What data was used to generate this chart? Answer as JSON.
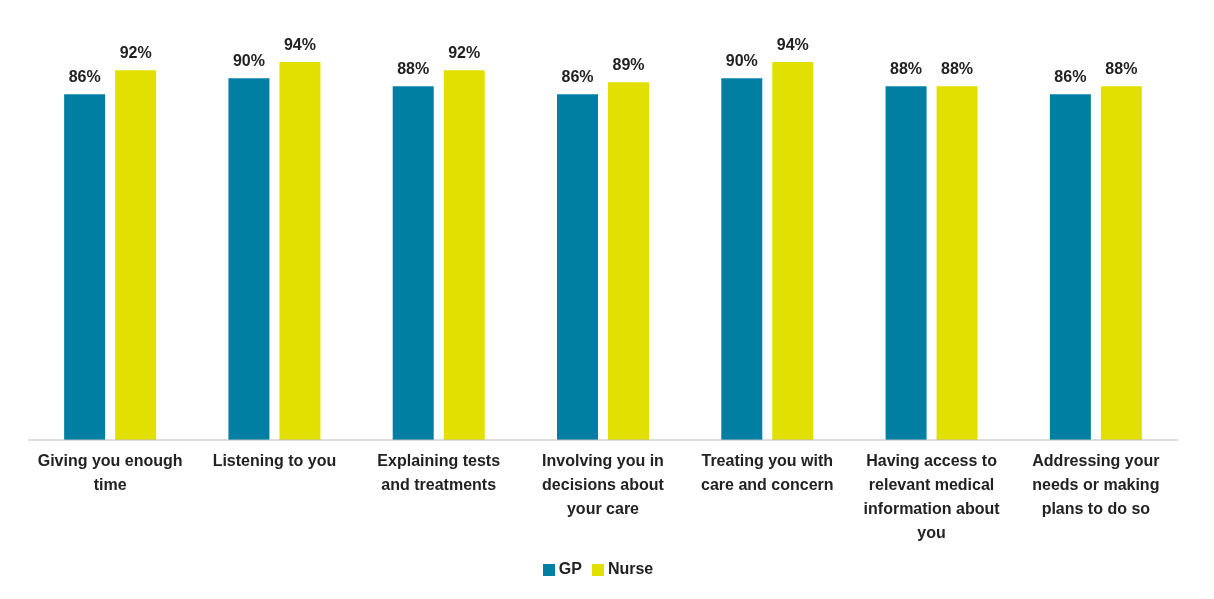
{
  "chart_data": {
    "type": "bar",
    "categories": [
      "Giving you enough time",
      "Listening to you",
      "Explaining tests and treatments",
      "Involving you in decisions about your care",
      "Treating you with care and concern",
      "Having access to relevant medical information about you",
      "Addressing your needs or making plans to do so"
    ],
    "series": [
      {
        "name": "GP",
        "color": "#007fa3",
        "values": [
          86,
          90,
          88,
          86,
          90,
          88,
          86
        ],
        "value_labels": [
          "86%",
          "90%",
          "88%",
          "86%",
          "90%",
          "88%",
          "86%"
        ]
      },
      {
        "name": "Nurse",
        "color": "#e1e000",
        "values": [
          92,
          94,
          92,
          89,
          94,
          88,
          88
        ],
        "value_labels": [
          "92%",
          "94%",
          "92%",
          "89%",
          "94%",
          "88%",
          "88%"
        ]
      }
    ],
    "legend": "bottom",
    "grid": false
  }
}
